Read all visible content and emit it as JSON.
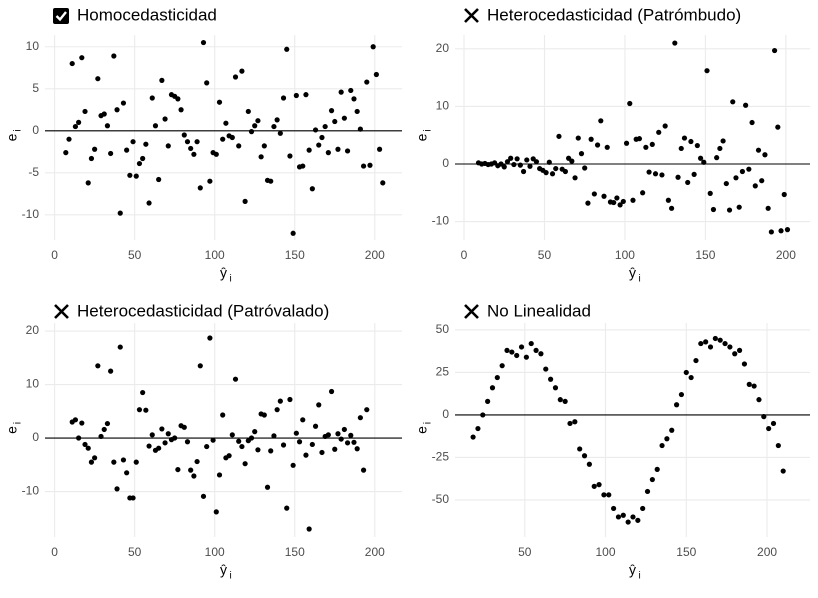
{
  "chart_data": [
    {
      "type": "scatter",
      "title": "Homocedasticidad",
      "status": "pass",
      "xlabel": "ŷ",
      "xlabel_sub": "i",
      "ylabel": "e",
      "ylabel_sub": "i",
      "reference_line": 0,
      "color": "#000000",
      "grid": true,
      "xlim": [
        -6,
        217
      ],
      "ylim": [
        -13,
        11.4
      ],
      "xticks": [
        0,
        50,
        100,
        150,
        200
      ],
      "yticks": [
        -10,
        -5,
        0,
        5,
        10
      ],
      "x": [
        7,
        9,
        11,
        13,
        15,
        17,
        19,
        21,
        23,
        25,
        27,
        29,
        31,
        33,
        35,
        37,
        39,
        41,
        43,
        45,
        47,
        49,
        51,
        53,
        55,
        57,
        59,
        61,
        63,
        65,
        67,
        69,
        71,
        73,
        75,
        77,
        79,
        81,
        83,
        85,
        87,
        89,
        91,
        93,
        95,
        97,
        99,
        101,
        103,
        105,
        107,
        109,
        111,
        113,
        115,
        117,
        119,
        121,
        123,
        125,
        127,
        129,
        131,
        133,
        135,
        137,
        139,
        141,
        143,
        145,
        147,
        149,
        151,
        153,
        155,
        157,
        159,
        161,
        163,
        165,
        167,
        169,
        171,
        173,
        175,
        177,
        179,
        181,
        183,
        185,
        187,
        189,
        191,
        193,
        195,
        197,
        199,
        201,
        203,
        205
      ],
      "values": [
        -2.6,
        -1,
        8,
        0.5,
        1,
        8.7,
        2.3,
        -6.2,
        -3.3,
        -2.2,
        6.2,
        1.8,
        2,
        0.6,
        -2.7,
        8.9,
        2.5,
        -9.8,
        3.3,
        -2.3,
        -5.3,
        -1.3,
        -5.4,
        -3.9,
        -3.3,
        -1.6,
        -8.6,
        3.9,
        0.6,
        -5.8,
        6,
        1.4,
        -1.8,
        4.3,
        4.1,
        3.8,
        2.5,
        -0.5,
        -1.3,
        -2.1,
        -2.8,
        -1.3,
        -6.8,
        10.5,
        5.7,
        -6,
        -2.6,
        -2.8,
        3.4,
        -1,
        0.9,
        -0.6,
        -0.8,
        6.4,
        -1.8,
        7.1,
        -8.4,
        2.3,
        -0.1,
        0.6,
        1.2,
        -3.1,
        -1.8,
        -5.9,
        -6,
        0.5,
        1.3,
        -0.3,
        3.9,
        9.7,
        -3,
        -12.2,
        4.2,
        -4.3,
        -4.2,
        4.3,
        -2.3,
        -6.9,
        0.1,
        -1.7,
        -0.8,
        0.5,
        -2.6,
        2.4,
        1.1,
        -2.2,
        4.6,
        1.5,
        -2.4,
        4.8,
        3.8,
        2.3,
        0.2,
        -4.2,
        5.8,
        -4.1,
        10,
        6.7,
        -2.2,
        -6.2
      ]
    },
    {
      "type": "scatter",
      "title": "Heterocedasticidad (Patrómbudo)",
      "status": "fail",
      "xlabel": "ŷ",
      "xlabel_sub": "i",
      "ylabel": "e",
      "ylabel_sub": "i",
      "reference_line": 0,
      "color": "#000000",
      "grid": true,
      "xlim": [
        -5.6,
        215
      ],
      "ylim": [
        -13.2,
        22.4
      ],
      "xticks": [
        0,
        50,
        100,
        150,
        200
      ],
      "yticks": [
        -10,
        0,
        10,
        20
      ],
      "x": [
        9,
        11,
        13,
        15,
        17,
        19,
        21,
        23,
        25,
        27,
        29,
        31,
        33,
        35,
        37,
        39,
        41,
        43,
        45,
        47,
        49,
        51,
        53,
        55,
        57,
        59,
        61,
        63,
        65,
        67,
        69,
        71,
        73,
        75,
        77,
        79,
        81,
        83,
        85,
        87,
        89,
        91,
        93,
        95,
        97,
        99,
        101,
        103,
        105,
        107,
        109,
        111,
        113,
        115,
        117,
        119,
        121,
        123,
        125,
        127,
        129,
        131,
        133,
        135,
        137,
        139,
        141,
        143,
        145,
        147,
        149,
        151,
        153,
        155,
        157,
        159,
        161,
        163,
        165,
        167,
        169,
        171,
        173,
        175,
        177,
        179,
        181,
        183,
        185,
        187,
        189,
        191,
        193,
        195,
        197,
        199,
        201
      ],
      "values": [
        0.2,
        0,
        0.1,
        -0.1,
        0,
        0.2,
        -0.3,
        0,
        -0.5,
        0.4,
        1,
        -0.1,
        0.9,
        -0.2,
        -1.3,
        0.7,
        -0.4,
        0.9,
        0.4,
        -0.8,
        -1.1,
        -1.5,
        0.3,
        -1.7,
        -0.8,
        4.8,
        -0.9,
        -1.3,
        1,
        0.5,
        -2.4,
        4.5,
        1.8,
        -0.7,
        -6.8,
        4.3,
        -5.2,
        3.3,
        7.5,
        -5.6,
        2.9,
        -6.6,
        -6.7,
        -5.9,
        -7.1,
        -6.5,
        3.6,
        10.5,
        -6.3,
        4.3,
        4.4,
        -5,
        2.9,
        -1.4,
        3.4,
        -1.7,
        5.5,
        -1.9,
        6.6,
        -6.3,
        -7.7,
        21,
        -2.3,
        2.7,
        4.5,
        -3.2,
        3.9,
        -1.8,
        3.2,
        1,
        0.3,
        16.2,
        -5.1,
        -7.9,
        1.1,
        2.7,
        4,
        -3.4,
        -8,
        10.8,
        -2.4,
        -7.5,
        -1.3,
        10.2,
        -0.9,
        7.2,
        -3.8,
        2.4,
        -2.9,
        1.6,
        -7.7,
        -11.8,
        19.7,
        6.4,
        -11.6,
        -5.3,
        -11.4
      ]
    },
    {
      "type": "scatter",
      "title": "Heterocedasticidad (Patróvalado)",
      "status": "fail",
      "xlabel": "ŷ",
      "xlabel_sub": "i",
      "ylabel": "e",
      "ylabel_sub": "i",
      "reference_line": 0,
      "color": "#000000",
      "grid": true,
      "xlim": [
        -6,
        217
      ],
      "ylim": [
        -18.5,
        21.5
      ],
      "xticks": [
        0,
        50,
        100,
        150,
        200
      ],
      "yticks": [
        -10,
        0,
        10,
        20
      ],
      "x": [
        11,
        13,
        15,
        17,
        19,
        21,
        23,
        25,
        27,
        29,
        31,
        33,
        35,
        37,
        39,
        41,
        43,
        45,
        47,
        49,
        51,
        53,
        55,
        57,
        59,
        61,
        63,
        65,
        67,
        69,
        71,
        73,
        75,
        77,
        79,
        81,
        83,
        85,
        87,
        89,
        91,
        93,
        95,
        97,
        99,
        101,
        103,
        105,
        107,
        109,
        111,
        113,
        115,
        117,
        119,
        121,
        123,
        125,
        127,
        129,
        131,
        133,
        135,
        137,
        139,
        141,
        143,
        145,
        147,
        149,
        151,
        153,
        155,
        157,
        159,
        161,
        163,
        165,
        167,
        169,
        171,
        173,
        175,
        177,
        179,
        181,
        183,
        185,
        187,
        189,
        191,
        193,
        195
      ],
      "values": [
        3,
        3.4,
        0,
        2.8,
        -1.2,
        -1.9,
        -4.5,
        -3.7,
        13.5,
        0.3,
        1.6,
        2.7,
        12.5,
        -4.5,
        -9.5,
        17,
        -4.1,
        -6.5,
        -11.2,
        -11.2,
        -4.5,
        5.3,
        8.5,
        5.2,
        -1.5,
        0.6,
        -2.3,
        -1.9,
        1.7,
        -0.9,
        0.8,
        -0.3,
        0,
        -5.9,
        2.3,
        2,
        -0.7,
        -6,
        -7.1,
        -4.4,
        13.5,
        -10.9,
        -1.6,
        18.7,
        -0.4,
        -13.8,
        -6.9,
        4.3,
        -3.7,
        -3.3,
        0.6,
        11,
        -0.6,
        -1.6,
        -4.8,
        -0.5,
        0,
        1.2,
        -2.2,
        4.5,
        4.3,
        -9.2,
        -2.4,
        0.4,
        5.3,
        6.9,
        -1.3,
        -13.1,
        7.2,
        -5.1,
        0.9,
        -0.7,
        3.4,
        -3.2,
        -17,
        -1.2,
        2.2,
        6.2,
        -2.7,
        0.3,
        0.6,
        8.7,
        -2.1,
        0.8,
        -0.2,
        1.6,
        -0.9,
        0.5,
        -0.8,
        -2,
        3.8,
        -6,
        5.3
      ]
    },
    {
      "type": "scatter",
      "title": "No Linealidad",
      "status": "fail",
      "xlabel": "ŷ",
      "xlabel_sub": "i",
      "ylabel": "e",
      "ylabel_sub": "i",
      "reference_line": 0,
      "color": "#000000",
      "grid": true,
      "xlim": [
        6.8,
        226.6
      ],
      "ylim": [
        -71.8,
        54.1
      ],
      "xticks": [
        50,
        100,
        150,
        200
      ],
      "yticks": [
        -50,
        -25,
        0,
        25,
        50
      ],
      "x": [
        18,
        21,
        24,
        27,
        30,
        33,
        36,
        39,
        42,
        45,
        48,
        51,
        54,
        57,
        60,
        63,
        66,
        69,
        72,
        75,
        78,
        81,
        84,
        87,
        90,
        93,
        96,
        99,
        102,
        105,
        108,
        111,
        114,
        117,
        120,
        123,
        126,
        129,
        132,
        135,
        138,
        141,
        144,
        147,
        150,
        153,
        156,
        159,
        162,
        165,
        168,
        171,
        174,
        177,
        180,
        183,
        186,
        189,
        192,
        195,
        198,
        201,
        204,
        207,
        210
      ],
      "values": [
        -13,
        -8,
        0,
        8,
        16,
        22,
        29,
        38,
        37,
        35,
        40,
        34,
        42,
        38,
        36,
        27,
        21,
        16,
        9,
        8,
        -5,
        -4,
        -20,
        -24,
        -29,
        -42,
        -41,
        -47,
        -47,
        -55,
        -60,
        -59,
        -63,
        -60,
        -62,
        -55,
        -45,
        -38,
        -32,
        -18,
        -14,
        -9,
        6,
        12,
        25,
        22,
        32,
        42,
        43,
        40,
        45,
        44,
        42,
        40,
        36,
        38,
        30,
        18,
        17,
        9,
        -1,
        -8,
        -5,
        -18,
        -33
      ]
    }
  ]
}
